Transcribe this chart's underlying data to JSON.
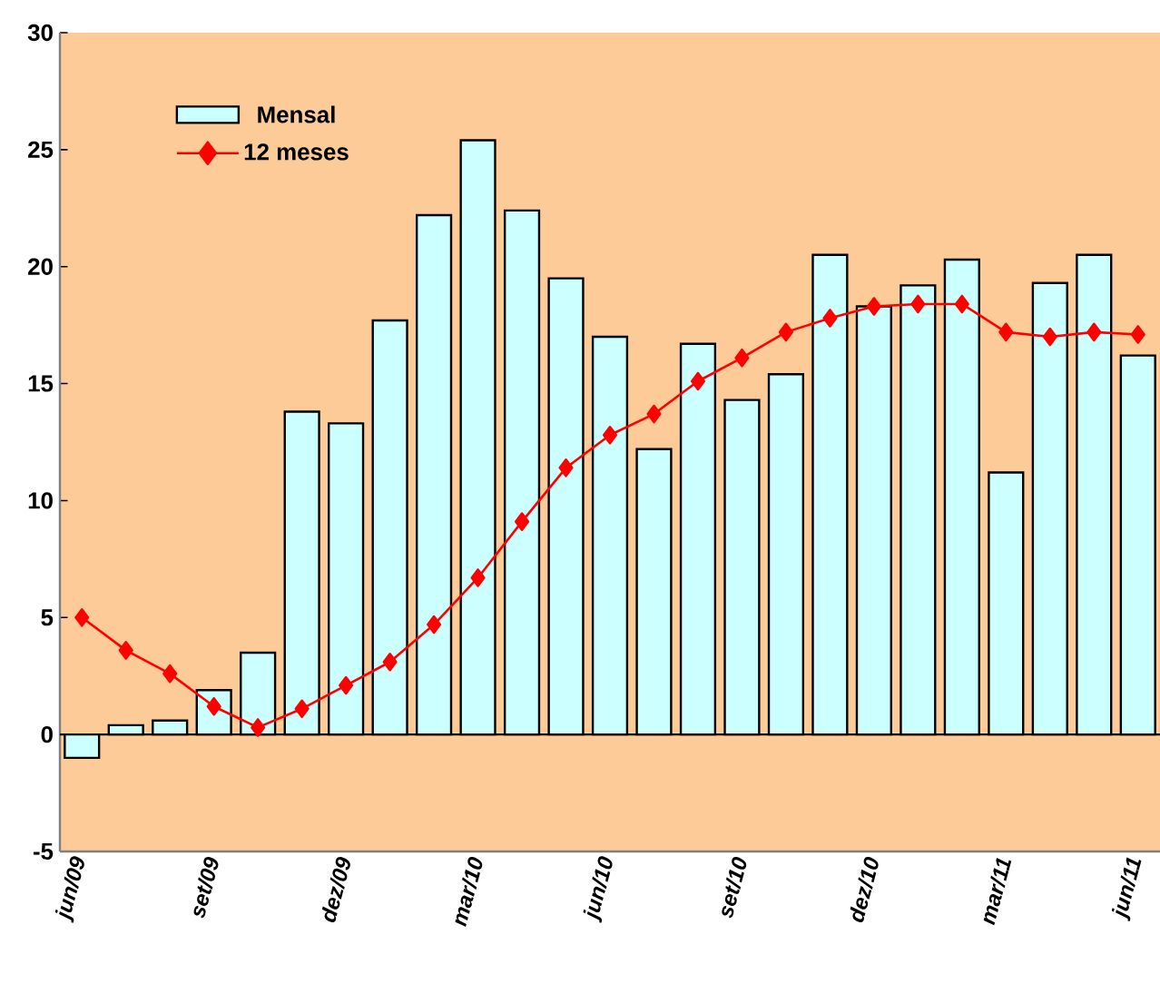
{
  "chart_data": {
    "type": "bar",
    "categories": [
      "jun/09",
      null,
      null,
      "set/09",
      null,
      null,
      "dez/09",
      null,
      null,
      "mar/10",
      null,
      null,
      "jun/10",
      null,
      null,
      "set/10",
      null,
      null,
      "dez/10",
      null,
      null,
      "mar/11",
      null,
      null,
      "jun/11"
    ],
    "series": [
      {
        "name": "Mensal",
        "color": "#ccffff",
        "values": [
          -1.0,
          0.4,
          0.6,
          1.9,
          3.5,
          13.8,
          13.3,
          17.7,
          22.2,
          25.4,
          22.4,
          19.5,
          17.0,
          12.2,
          16.7,
          14.3,
          15.4,
          20.5,
          18.3,
          19.2,
          20.3,
          11.2,
          19.3,
          20.5,
          16.2
        ]
      },
      {
        "name": "12 meses",
        "type": "line",
        "color": "#ff0000",
        "marker": "diamond",
        "values": [
          5.0,
          3.6,
          2.6,
          1.2,
          0.3,
          1.1,
          2.1,
          3.1,
          4.7,
          6.7,
          9.1,
          11.4,
          12.8,
          13.7,
          15.1,
          16.1,
          17.2,
          17.8,
          18.3,
          18.4,
          18.4,
          17.2,
          17.0,
          17.2,
          17.1
        ]
      }
    ],
    "ylim": [
      -5,
      30
    ],
    "yticks": [
      -5,
      0,
      5,
      10,
      15,
      20,
      25,
      30
    ],
    "ref_lines": [
      {
        "axis": "y",
        "value": 0,
        "color": "#000000"
      }
    ],
    "grid": false,
    "legend": "top left"
  }
}
